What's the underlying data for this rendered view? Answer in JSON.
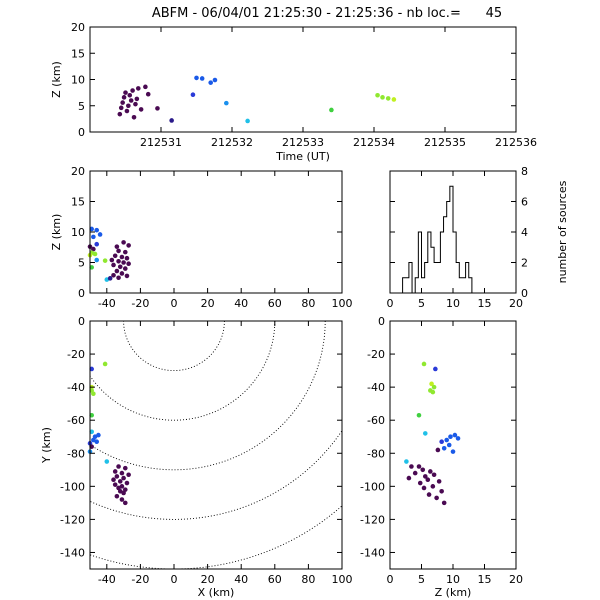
{
  "title": "ABFM - 06/04/01 21:25:30 - 21:25:36 - nb loc.=      45",
  "chart_data": [
    {
      "type": "scatter",
      "name": "time-height",
      "xlabel": "Time (UT)",
      "ylabel": "Z (km)",
      "xlim": [
        212530,
        212536
      ],
      "ylim": [
        0,
        20
      ],
      "xticks": [
        "212531",
        "212532",
        "212533",
        "212534",
        "212535",
        "212536"
      ],
      "yticks": [
        "0",
        "5",
        "10",
        "15",
        "20"
      ],
      "points": [
        {
          "x": 212530.42,
          "y": 3.4,
          "c": "#4a0a52"
        },
        {
          "x": 212530.44,
          "y": 4.6,
          "c": "#4a0a52"
        },
        {
          "x": 212530.46,
          "y": 5.6,
          "c": "#4a0a52"
        },
        {
          "x": 212530.48,
          "y": 6.6,
          "c": "#4a0a52"
        },
        {
          "x": 212530.5,
          "y": 7.5,
          "c": "#4a0a52"
        },
        {
          "x": 212530.52,
          "y": 4.0,
          "c": "#4a0a52"
        },
        {
          "x": 212530.54,
          "y": 5.0,
          "c": "#4a0a52"
        },
        {
          "x": 212530.56,
          "y": 7.0,
          "c": "#4a0a52"
        },
        {
          "x": 212530.58,
          "y": 6.0,
          "c": "#4a0a52"
        },
        {
          "x": 212530.6,
          "y": 7.9,
          "c": "#4a0a52"
        },
        {
          "x": 212530.62,
          "y": 2.8,
          "c": "#4a0a52"
        },
        {
          "x": 212530.64,
          "y": 5.3,
          "c": "#4a0a52"
        },
        {
          "x": 212530.66,
          "y": 6.3,
          "c": "#4a0a52"
        },
        {
          "x": 212530.68,
          "y": 8.3,
          "c": "#4a0a52"
        },
        {
          "x": 212530.72,
          "y": 4.3,
          "c": "#4a0a52"
        },
        {
          "x": 212530.78,
          "y": 8.6,
          "c": "#4a0a52"
        },
        {
          "x": 212530.82,
          "y": 7.2,
          "c": "#4a0a52"
        },
        {
          "x": 212530.95,
          "y": 4.5,
          "c": "#4a0a52"
        },
        {
          "x": 212531.15,
          "y": 2.2,
          "c": "#2a1a8a"
        },
        {
          "x": 212531.45,
          "y": 7.1,
          "c": "#2a3ad8"
        },
        {
          "x": 212531.5,
          "y": 10.3,
          "c": "#1a5ae8"
        },
        {
          "x": 212531.58,
          "y": 10.2,
          "c": "#1a5ae8"
        },
        {
          "x": 212531.7,
          "y": 9.4,
          "c": "#1a5ae8"
        },
        {
          "x": 212531.76,
          "y": 9.9,
          "c": "#1a5ae8"
        },
        {
          "x": 212531.92,
          "y": 5.5,
          "c": "#1a90ee"
        },
        {
          "x": 212532.22,
          "y": 2.1,
          "c": "#20c0e8"
        },
        {
          "x": 212533.4,
          "y": 4.2,
          "c": "#40d040"
        },
        {
          "x": 212534.05,
          "y": 7.0,
          "c": "#90e830"
        },
        {
          "x": 212534.12,
          "y": 6.6,
          "c": "#90e830"
        },
        {
          "x": 212534.2,
          "y": 6.4,
          "c": "#90e830"
        },
        {
          "x": 212534.28,
          "y": 6.2,
          "c": "#c0f020"
        }
      ]
    },
    {
      "type": "scatter",
      "name": "x-height",
      "xlabel": "",
      "ylabel": "Z (km)",
      "xlim": [
        -50,
        100
      ],
      "ylim": [
        0,
        20
      ],
      "xticks": [
        "-40",
        "-20",
        "0",
        "20",
        "40",
        "60",
        "80",
        "100"
      ],
      "yticks": [
        "0",
        "5",
        "10",
        "15",
        "20"
      ],
      "points": [
        {
          "x": -49,
          "y": 10.5,
          "c": "#1a5ae8"
        },
        {
          "x": -46,
          "y": 10.3,
          "c": "#1a5ae8"
        },
        {
          "x": -44,
          "y": 9.6,
          "c": "#1a5ae8"
        },
        {
          "x": -48,
          "y": 9.2,
          "c": "#1a5ae8"
        },
        {
          "x": -46,
          "y": 8.0,
          "c": "#2a3ad8"
        },
        {
          "x": -50,
          "y": 7.6,
          "c": "#4a0a52"
        },
        {
          "x": -48,
          "y": 7.2,
          "c": "#4a0a52"
        },
        {
          "x": -49,
          "y": 6.6,
          "c": "#90e830"
        },
        {
          "x": -47,
          "y": 6.4,
          "c": "#90e830"
        },
        {
          "x": -50,
          "y": 6.2,
          "c": "#c0f020"
        },
        {
          "x": -46,
          "y": 5.4,
          "c": "#1a90ee"
        },
        {
          "x": -41,
          "y": 5.3,
          "c": "#90e830"
        },
        {
          "x": -49,
          "y": 4.2,
          "c": "#40d040"
        },
        {
          "x": -40,
          "y": 2.2,
          "c": "#20c0e8"
        },
        {
          "x": -30,
          "y": 8.3,
          "c": "#4a0a52"
        },
        {
          "x": -34,
          "y": 7.6,
          "c": "#4a0a52"
        },
        {
          "x": -27,
          "y": 7.8,
          "c": "#4a0a52"
        },
        {
          "x": -33,
          "y": 6.9,
          "c": "#4a0a52"
        },
        {
          "x": -29,
          "y": 6.7,
          "c": "#4a0a52"
        },
        {
          "x": -35,
          "y": 6.1,
          "c": "#4a0a52"
        },
        {
          "x": -31,
          "y": 5.9,
          "c": "#4a0a52"
        },
        {
          "x": -28,
          "y": 5.7,
          "c": "#4a0a52"
        },
        {
          "x": -37,
          "y": 5.4,
          "c": "#4a0a52"
        },
        {
          "x": -33,
          "y": 5.2,
          "c": "#4a0a52"
        },
        {
          "x": -30,
          "y": 5.0,
          "c": "#4a0a52"
        },
        {
          "x": -27,
          "y": 4.8,
          "c": "#4a0a52"
        },
        {
          "x": -36,
          "y": 4.6,
          "c": "#4a0a52"
        },
        {
          "x": -32,
          "y": 4.3,
          "c": "#4a0a52"
        },
        {
          "x": -29,
          "y": 4.0,
          "c": "#4a0a52"
        },
        {
          "x": -34,
          "y": 3.6,
          "c": "#4a0a52"
        },
        {
          "x": -31,
          "y": 3.2,
          "c": "#4a0a52"
        },
        {
          "x": -36,
          "y": 2.9,
          "c": "#4a0a52"
        },
        {
          "x": -33,
          "y": 2.5,
          "c": "#4a0a52"
        },
        {
          "x": -28,
          "y": 2.8,
          "c": "#4a0a52"
        },
        {
          "x": -38,
          "y": 2.4,
          "c": "#2a1a8a"
        }
      ]
    },
    {
      "type": "bar",
      "name": "height-histogram",
      "xlabel": "",
      "ylabel": "number of sources",
      "xlim": [
        0,
        20
      ],
      "ylim": [
        0,
        8
      ],
      "xticks": [
        "0",
        "5",
        "10",
        "15",
        "20"
      ],
      "yticks": [
        "0",
        "2",
        "4",
        "6",
        "8"
      ],
      "bin_width": 0.5,
      "bin_start": 2.0,
      "counts": [
        1,
        1,
        2,
        0,
        1,
        4,
        1,
        2,
        4,
        3,
        2,
        2,
        4,
        5,
        6,
        7,
        4,
        2,
        1,
        1,
        2,
        1,
        0
      ]
    },
    {
      "type": "scatter",
      "name": "plan-view",
      "xlabel": "X (km)",
      "ylabel": "Y (km)",
      "xlim": [
        -50,
        100
      ],
      "ylim": [
        -150,
        0
      ],
      "xticks": [
        "-40",
        "-20",
        "0",
        "20",
        "40",
        "60",
        "80",
        "100"
      ],
      "yticks": [
        "-140",
        "-120",
        "-100",
        "-80",
        "-60",
        "-40",
        "-20",
        "0"
      ],
      "range_rings_km": [
        30,
        60,
        90,
        120,
        150
      ],
      "points": [
        {
          "x": -41,
          "y": -26,
          "c": "#90e830"
        },
        {
          "x": -49,
          "y": -29,
          "c": "#2a3ad8"
        },
        {
          "x": -49,
          "y": -40,
          "c": "#c0f020"
        },
        {
          "x": -49,
          "y": -42,
          "c": "#90e830"
        },
        {
          "x": -48,
          "y": -44,
          "c": "#90e830"
        },
        {
          "x": -49,
          "y": -57,
          "c": "#40d040"
        },
        {
          "x": -49,
          "y": -67,
          "c": "#20c0e8"
        },
        {
          "x": -45,
          "y": -69,
          "c": "#1a5ae8"
        },
        {
          "x": -47,
          "y": -70,
          "c": "#1a5ae8"
        },
        {
          "x": -48,
          "y": -72,
          "c": "#1a5ae8"
        },
        {
          "x": -46,
          "y": -73,
          "c": "#1a5ae8"
        },
        {
          "x": -50,
          "y": -74,
          "c": "#2a3ad8"
        },
        {
          "x": -49,
          "y": -76,
          "c": "#4a0a52"
        },
        {
          "x": -50,
          "y": -79,
          "c": "#1a90ee"
        },
        {
          "x": -40,
          "y": -85,
          "c": "#20c0e8"
        },
        {
          "x": -33,
          "y": -88,
          "c": "#4a0a52"
        },
        {
          "x": -29,
          "y": -89,
          "c": "#4a0a52"
        },
        {
          "x": -35,
          "y": -91,
          "c": "#4a0a52"
        },
        {
          "x": -31,
          "y": -92,
          "c": "#4a0a52"
        },
        {
          "x": -27,
          "y": -93,
          "c": "#4a0a52"
        },
        {
          "x": -34,
          "y": -94,
          "c": "#4a0a52"
        },
        {
          "x": -30,
          "y": -95,
          "c": "#4a0a52"
        },
        {
          "x": -36,
          "y": -96,
          "c": "#4a0a52"
        },
        {
          "x": -32,
          "y": -97,
          "c": "#4a0a52"
        },
        {
          "x": -28,
          "y": -98,
          "c": "#4a0a52"
        },
        {
          "x": -35,
          "y": -99,
          "c": "#4a0a52"
        },
        {
          "x": -31,
          "y": -100,
          "c": "#4a0a52"
        },
        {
          "x": -33,
          "y": -101,
          "c": "#4a0a52"
        },
        {
          "x": -29,
          "y": -102,
          "c": "#4a0a52"
        },
        {
          "x": -32,
          "y": -103,
          "c": "#4a0a52"
        },
        {
          "x": -30,
          "y": -104,
          "c": "#4a0a52"
        },
        {
          "x": -34,
          "y": -106,
          "c": "#4a0a52"
        },
        {
          "x": -31,
          "y": -108,
          "c": "#4a0a52"
        },
        {
          "x": -29,
          "y": -110,
          "c": "#4a0a52"
        }
      ]
    },
    {
      "type": "scatter",
      "name": "z-y-view",
      "xlabel": "Z (km)",
      "ylabel": "",
      "xlim": [
        0,
        20
      ],
      "ylim": [
        -150,
        0
      ],
      "xticks": [
        "0",
        "5",
        "10",
        "15",
        "20"
      ],
      "yticks": [
        "-140",
        "-120",
        "-100",
        "-80",
        "-60",
        "-40",
        "-20",
        "0"
      ],
      "points": [
        {
          "x": 5.4,
          "y": -26,
          "c": "#90e830"
        },
        {
          "x": 7.2,
          "y": -29,
          "c": "#2a3ad8"
        },
        {
          "x": 6.6,
          "y": -38,
          "c": "#c0f020"
        },
        {
          "x": 7.0,
          "y": -40,
          "c": "#90e830"
        },
        {
          "x": 6.4,
          "y": -42,
          "c": "#90e830"
        },
        {
          "x": 6.8,
          "y": -43,
          "c": "#90e830"
        },
        {
          "x": 4.6,
          "y": -57,
          "c": "#40d040"
        },
        {
          "x": 5.6,
          "y": -68,
          "c": "#20c0e8"
        },
        {
          "x": 10.3,
          "y": -69,
          "c": "#1a5ae8"
        },
        {
          "x": 9.6,
          "y": -70,
          "c": "#1a5ae8"
        },
        {
          "x": 10.8,
          "y": -71,
          "c": "#1a5ae8"
        },
        {
          "x": 9.0,
          "y": -72,
          "c": "#1a5ae8"
        },
        {
          "x": 8.2,
          "y": -73,
          "c": "#2a3ad8"
        },
        {
          "x": 9.4,
          "y": -75,
          "c": "#1a5ae8"
        },
        {
          "x": 8.6,
          "y": -77,
          "c": "#1a5ae8"
        },
        {
          "x": 10.0,
          "y": -79,
          "c": "#1a5ae8"
        },
        {
          "x": 7.6,
          "y": -78,
          "c": "#4a0a52"
        },
        {
          "x": 2.6,
          "y": -85,
          "c": "#20c0e8"
        },
        {
          "x": 3.4,
          "y": -88,
          "c": "#4a0a52"
        },
        {
          "x": 4.6,
          "y": -88,
          "c": "#4a0a52"
        },
        {
          "x": 5.2,
          "y": -90,
          "c": "#4a0a52"
        },
        {
          "x": 6.4,
          "y": -91,
          "c": "#4a0a52"
        },
        {
          "x": 4.0,
          "y": -92,
          "c": "#4a0a52"
        },
        {
          "x": 7.0,
          "y": -93,
          "c": "#4a0a52"
        },
        {
          "x": 5.6,
          "y": -94,
          "c": "#4a0a52"
        },
        {
          "x": 3.0,
          "y": -95,
          "c": "#4a0a52"
        },
        {
          "x": 6.0,
          "y": -96,
          "c": "#4a0a52"
        },
        {
          "x": 7.8,
          "y": -97,
          "c": "#4a0a52"
        },
        {
          "x": 4.8,
          "y": -98,
          "c": "#4a0a52"
        },
        {
          "x": 6.8,
          "y": -100,
          "c": "#4a0a52"
        },
        {
          "x": 5.4,
          "y": -101,
          "c": "#4a0a52"
        },
        {
          "x": 8.2,
          "y": -103,
          "c": "#4a0a52"
        },
        {
          "x": 6.2,
          "y": -105,
          "c": "#4a0a52"
        },
        {
          "x": 7.4,
          "y": -107,
          "c": "#4a0a52"
        },
        {
          "x": 8.6,
          "y": -110,
          "c": "#4a0a52"
        }
      ]
    }
  ]
}
